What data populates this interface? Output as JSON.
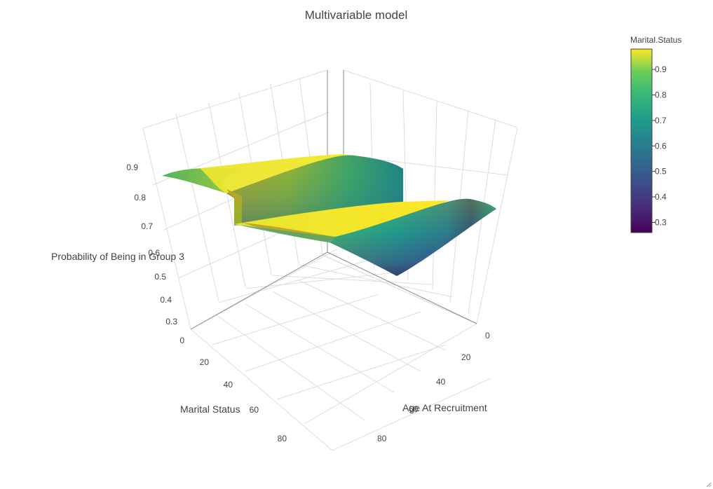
{
  "chart_data": {
    "type": "surface",
    "title": "Multivariable model",
    "x_axis": {
      "label": "Age At Recruitment",
      "ticks": [
        "0",
        "20",
        "40",
        "60",
        "80"
      ]
    },
    "y_axis": {
      "label": "Marital Status",
      "ticks": [
        "0",
        "20",
        "40",
        "60",
        "80"
      ]
    },
    "z_axis": {
      "label": "Probability of Being in Group 3",
      "ticks": [
        "0.3",
        "0.4",
        "0.5",
        "0.6",
        "0.7",
        "0.8",
        "0.9"
      ]
    },
    "colorscale": "Viridis",
    "colorbar": {
      "title": "Marital.Status",
      "ticks": [
        "0.9",
        "0.8",
        "0.7",
        "0.6",
        "0.5",
        "0.4",
        "0.3"
      ],
      "range": [
        0.26,
        0.98
      ]
    },
    "surfaces": [
      {
        "level": "upper",
        "z_range": [
          0.78,
          0.95
        ]
      },
      {
        "level": "lower",
        "z_range": [
          0.27,
          0.97
        ]
      }
    ],
    "colors": {
      "min": "#440154",
      "mid": "#21908d",
      "max": "#fde725"
    }
  }
}
